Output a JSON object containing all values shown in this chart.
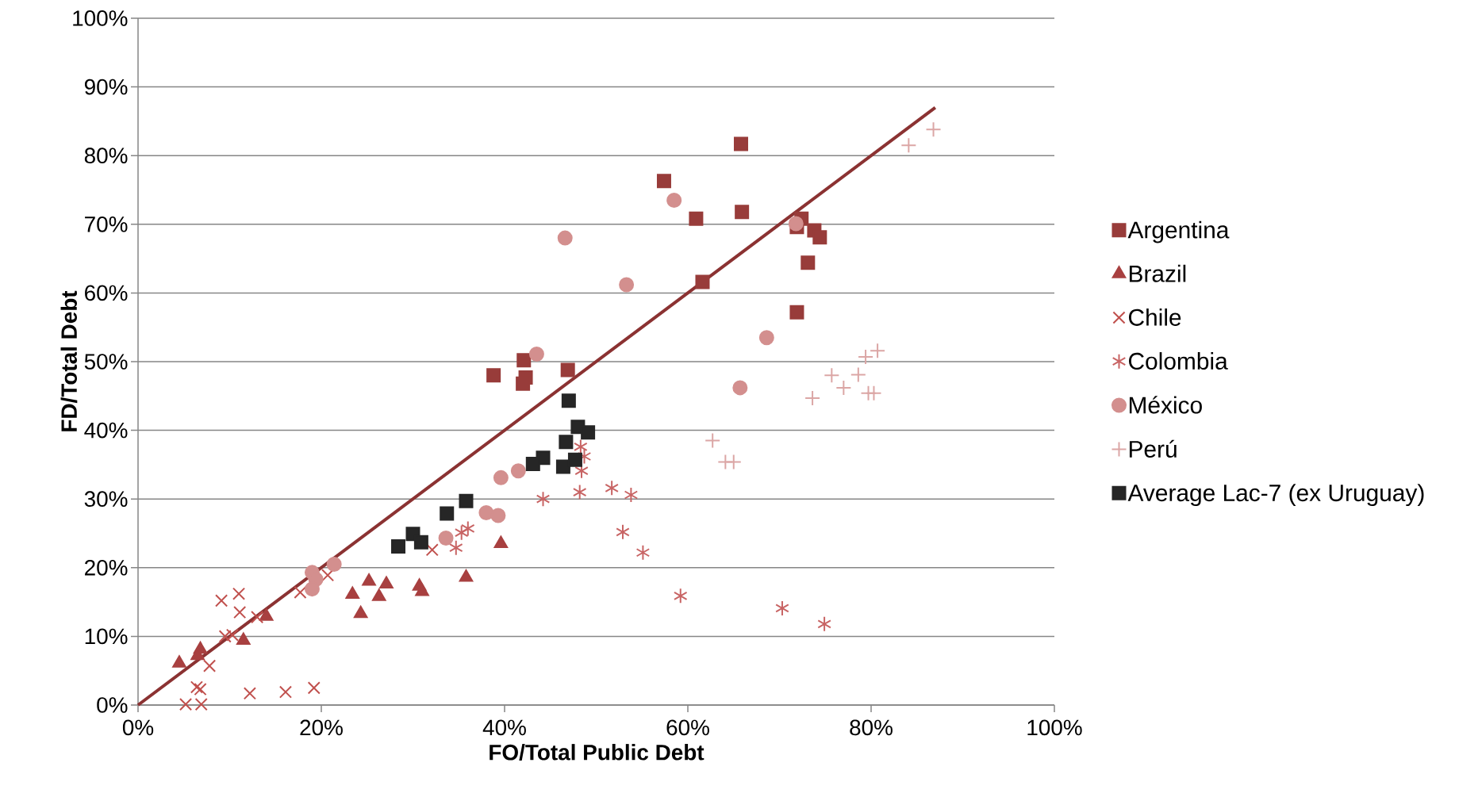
{
  "chart_data": {
    "type": "scatter",
    "xlabel": "FO/Total Public Debt",
    "ylabel": "FD/Total Debt",
    "xlim": [
      0,
      100
    ],
    "ylim": [
      0,
      100
    ],
    "xticks": [
      {
        "value": 0,
        "label": "0%"
      },
      {
        "value": 20,
        "label": "20%"
      },
      {
        "value": 40,
        "label": "40%"
      },
      {
        "value": 60,
        "label": "60%"
      },
      {
        "value": 80,
        "label": "80%"
      },
      {
        "value": 100,
        "label": "100%"
      }
    ],
    "yticks": [
      {
        "value": 0,
        "label": "0%"
      },
      {
        "value": 10,
        "label": "10%"
      },
      {
        "value": 20,
        "label": "20%"
      },
      {
        "value": 30,
        "label": "30%"
      },
      {
        "value": 40,
        "label": "40%"
      },
      {
        "value": 50,
        "label": "50%"
      },
      {
        "value": 60,
        "label": "60%"
      },
      {
        "value": 70,
        "label": "70%"
      },
      {
        "value": 80,
        "label": "80%"
      },
      {
        "value": 90,
        "label": "90%"
      },
      {
        "value": 100,
        "label": "100%"
      }
    ],
    "grid": "y",
    "legend": "right",
    "series": [
      {
        "type": "line",
        "color": "#8b3232",
        "marker": "none",
        "line_style": "solid",
        "x": [
          0,
          87
        ],
        "values": [
          0,
          87
        ]
      },
      {
        "name": "Argentina",
        "color": "#983c3a",
        "marker": "square",
        "x": [
          65.8,
          57.4,
          60.9,
          65.9,
          71.9,
          72.4,
          73.8,
          74.4,
          73.1,
          71.9,
          61.6,
          38.8,
          42.1,
          42.3,
          42.0,
          46.9
        ],
        "values": [
          81.7,
          76.3,
          70.8,
          71.8,
          69.6,
          70.8,
          69.1,
          68.1,
          64.4,
          57.2,
          61.6,
          48.0,
          50.2,
          47.7,
          46.8,
          48.8
        ]
      },
      {
        "name": "Brazil",
        "color": "#a84040",
        "marker": "triangle",
        "x": [
          4.5,
          6.8,
          6.5,
          11.5,
          14.0,
          23.4,
          24.3,
          25.2,
          26.3,
          27.1,
          30.7,
          31.0,
          35.8,
          39.6
        ],
        "values": [
          6.1,
          8.1,
          7.2,
          9.4,
          12.9,
          16.1,
          13.3,
          18.0,
          15.8,
          17.6,
          17.3,
          16.5,
          18.6,
          23.5
        ]
      },
      {
        "name": "Chile",
        "color": "#c0504d",
        "marker": "cross",
        "x": [
          9.1,
          11.0,
          11.1,
          13.0,
          9.5,
          10.3,
          7.8,
          6.4,
          6.8,
          5.2,
          6.9,
          12.2,
          16.1,
          19.2,
          17.7,
          20.7,
          32.1
        ],
        "values": [
          15.2,
          16.2,
          13.5,
          12.8,
          10.0,
          10.2,
          5.7,
          2.6,
          2.3,
          0.1,
          0.1,
          1.7,
          1.9,
          2.5,
          16.4,
          18.9,
          22.6
        ]
      },
      {
        "name": "Colombia",
        "color": "#c86464",
        "x": [
          34.7,
          35.3,
          36.0,
          44.2,
          48.2,
          51.7,
          53.8,
          52.9,
          55.1,
          59.2,
          70.3,
          74.9,
          48.4,
          48.7,
          48.3
        ],
        "values": [
          22.9,
          25.1,
          25.7,
          30.0,
          31.0,
          31.6,
          30.6,
          25.2,
          22.2,
          15.9,
          14.1,
          11.8,
          34.1,
          36.2,
          37.6
        ]
      },
      {
        "name": "México",
        "color": "#d38f8e",
        "marker": "circle",
        "x": [
          19.0,
          19.4,
          19.0,
          21.4,
          33.6,
          38.0,
          39.3,
          39.6,
          41.5,
          43.5,
          65.7,
          46.6,
          58.5,
          53.3,
          68.6,
          71.8
        ],
        "values": [
          19.3,
          18.3,
          16.9,
          20.5,
          24.3,
          28.0,
          27.6,
          33.1,
          34.1,
          51.1,
          46.2,
          68.0,
          73.5,
          61.2,
          53.5,
          70.1
        ]
      },
      {
        "name": "Perú",
        "color": "#dba6a5",
        "marker": "plus",
        "x": [
          84.1,
          86.8,
          80.7,
          79.4,
          75.7,
          78.6,
          77.0,
          73.6,
          79.7,
          80.3,
          62.7,
          64.1,
          65.0
        ],
        "values": [
          81.5,
          83.8,
          51.6,
          50.7,
          48.0,
          48.1,
          46.2,
          44.7,
          45.4,
          45.4,
          38.5,
          35.4,
          35.4
        ]
      },
      {
        "name": "Average Lac-7 (ex Uruguay)",
        "color": "#262626",
        "marker": "square",
        "x": [
          28.4,
          30.0,
          30.9,
          33.7,
          35.8,
          47.0,
          48.0,
          49.1,
          46.7,
          44.2,
          43.1,
          46.4,
          47.7
        ],
        "values": [
          23.1,
          24.9,
          23.7,
          27.9,
          29.7,
          44.3,
          40.5,
          39.7,
          38.3,
          36.0,
          35.1,
          34.7,
          35.7
        ]
      }
    ]
  }
}
